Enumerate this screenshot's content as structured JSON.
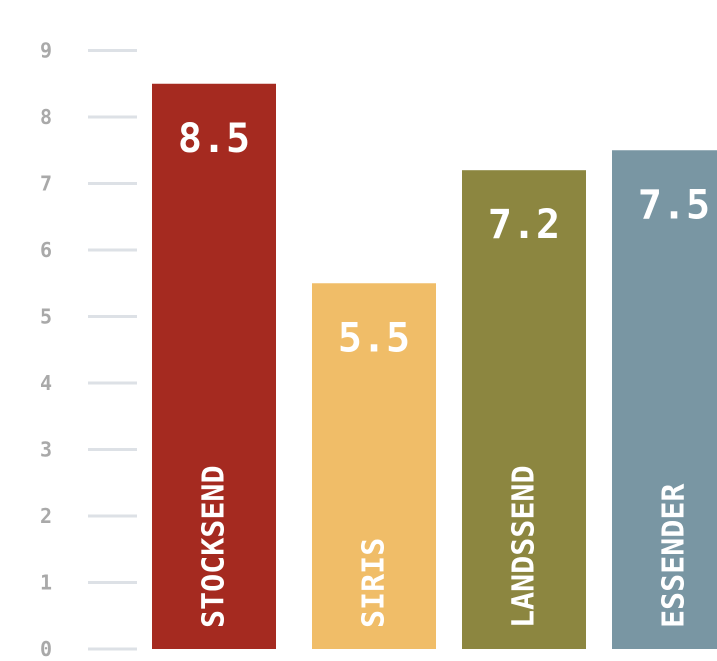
{
  "chart_data": {
    "type": "bar",
    "categories": [
      "STOCKSEND",
      "SIRIS",
      "LANDSSEND",
      "ESSENDER"
    ],
    "values": [
      8.5,
      5.5,
      7.2,
      7.5
    ],
    "value_labels": [
      "8.5",
      "5.5",
      "7.2",
      "7.5"
    ],
    "colors": [
      "#a52a20",
      "#f0bd68",
      "#8c8640",
      "#7996a3"
    ],
    "category_label_orientation": "vertical",
    "ylim": [
      0,
      9
    ],
    "yticks": [
      0,
      1,
      2,
      3,
      4,
      5,
      6,
      7,
      8,
      9
    ],
    "title": "",
    "xlabel": "",
    "ylabel": "",
    "grid": false,
    "legend": "none"
  }
}
